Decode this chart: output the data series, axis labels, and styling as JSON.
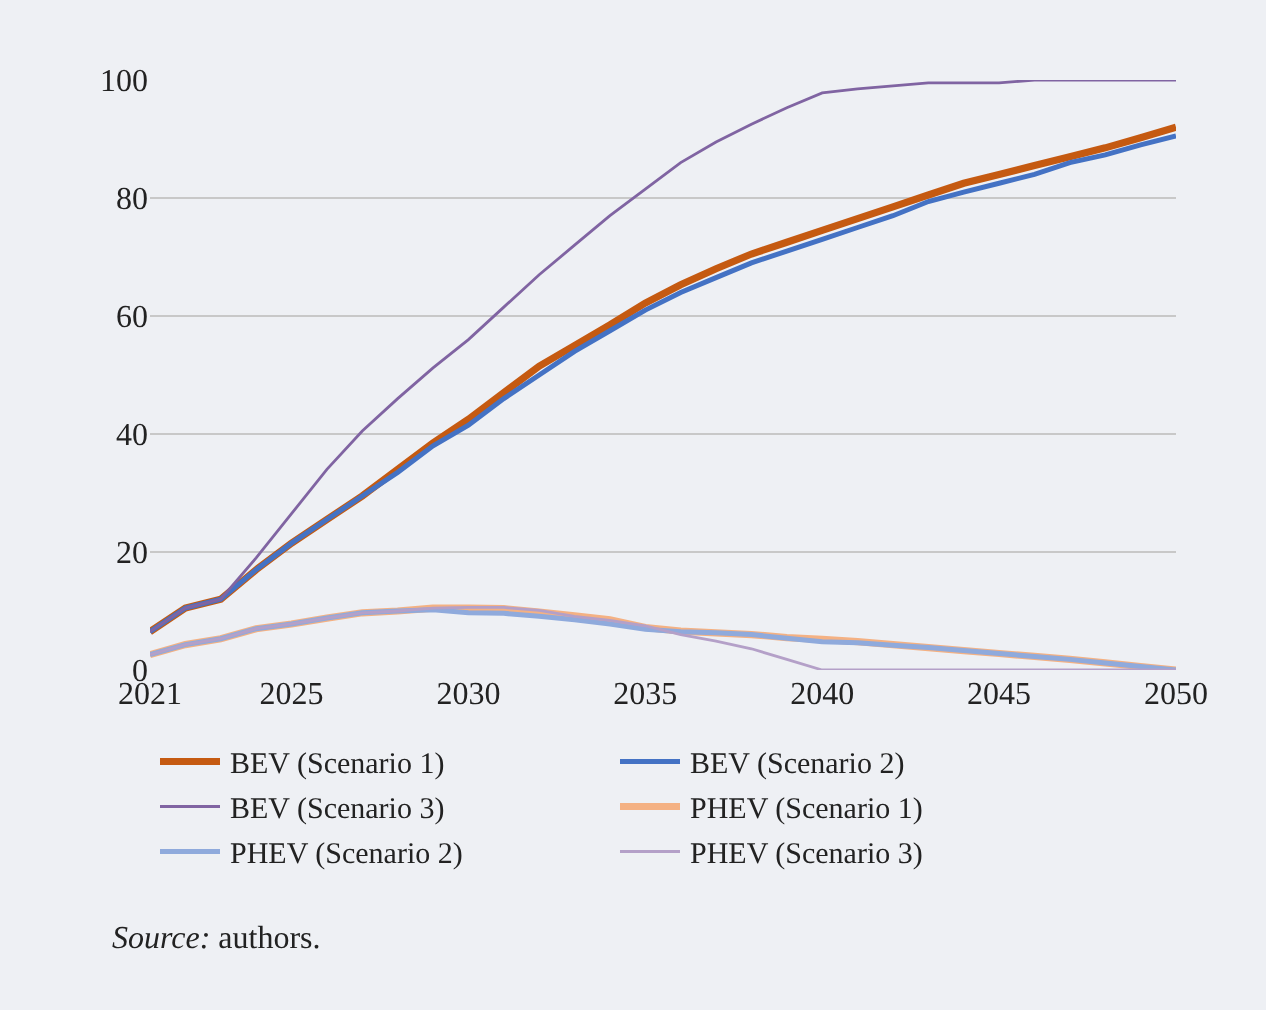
{
  "chart_data": {
    "type": "line",
    "x": [
      2021,
      2022,
      2023,
      2024,
      2025,
      2026,
      2027,
      2028,
      2029,
      2030,
      2031,
      2032,
      2033,
      2034,
      2035,
      2036,
      2037,
      2038,
      2039,
      2040,
      2041,
      2042,
      2043,
      2044,
      2045,
      2046,
      2047,
      2048,
      2049,
      2050
    ],
    "series": [
      {
        "name": "BEV (Scenario 1)",
        "color": "#c55a11",
        "values": [
          6.5,
          10.5,
          12,
          17,
          21.5,
          25.5,
          29.5,
          34,
          38.5,
          42.5,
          47,
          51.5,
          55,
          58.5,
          62.2,
          65.3,
          68,
          70.5,
          72.5,
          74.5,
          76.5,
          78.5,
          80.5,
          82.5,
          84,
          85.5,
          87,
          88.5,
          90.2,
          92
        ]
      },
      {
        "name": "BEV (Scenario 2)",
        "color": "#4472c4",
        "values": [
          6.5,
          10.5,
          12,
          17,
          21.5,
          25.5,
          29.5,
          33.5,
          38,
          41.5,
          46,
          50,
          54,
          57.5,
          61,
          64,
          66.5,
          69,
          71,
          73,
          75,
          77,
          79.4,
          81,
          82.5,
          84,
          86,
          87.3,
          89,
          90.5
        ]
      },
      {
        "name": "BEV (Scenario 3)",
        "color": "#8064a2",
        "values": [
          6.5,
          10.5,
          12,
          19,
          26.5,
          34,
          40.5,
          46,
          51.2,
          56,
          61.5,
          67,
          72,
          77,
          81.5,
          86,
          89.5,
          92.5,
          95.3,
          97.8,
          98.5,
          99,
          99.5,
          99.5,
          99.5,
          100,
          100,
          100,
          100,
          100
        ]
      },
      {
        "name": "PHEV (Scenario 1)",
        "color": "#f4b183",
        "values": [
          2.6,
          4.3,
          5.3,
          7,
          7.8,
          8.8,
          9.7,
          10,
          10.5,
          10.5,
          10.4,
          9.8,
          9.2,
          8.5,
          7.2,
          6.6,
          6.3,
          6,
          5.5,
          5.2,
          4.8,
          4.3,
          3.8,
          3.3,
          2.8,
          2.3,
          1.8,
          1.2,
          0.6,
          0
        ]
      },
      {
        "name": "PHEV (Scenario 2)",
        "color": "#8faadc",
        "values": [
          2.6,
          4.3,
          5.3,
          7,
          7.8,
          8.8,
          9.7,
          10,
          10.2,
          9.7,
          9.6,
          9.1,
          8.5,
          7.8,
          6.9,
          6.5,
          6.3,
          6,
          5.4,
          4.8,
          4.6,
          4.2,
          3.8,
          3.3,
          2.8,
          2.3,
          1.8,
          1.2,
          0.6,
          0
        ]
      },
      {
        "name": "PHEV (Scenario 3)",
        "color": "#b4a0c8",
        "values": [
          2.6,
          4.3,
          5.3,
          7,
          7.8,
          8.8,
          9.7,
          10,
          10.5,
          10.6,
          10.6,
          10.1,
          9.1,
          8.4,
          7.5,
          6,
          4.9,
          3.6,
          1.8,
          0,
          0,
          0,
          0,
          0,
          0,
          0,
          0,
          0,
          0,
          0
        ]
      }
    ],
    "xlim": [
      2021,
      2050
    ],
    "xticks": [
      2021,
      2025,
      2030,
      2035,
      2040,
      2045,
      2050
    ],
    "ylim": [
      0,
      100
    ],
    "yticks": [
      0,
      20,
      40,
      60,
      80,
      100
    ],
    "grid": "y",
    "legend": "bottom",
    "marker": "none",
    "line_style": "solid",
    "annotations": [
      "Source: authors."
    ]
  }
}
